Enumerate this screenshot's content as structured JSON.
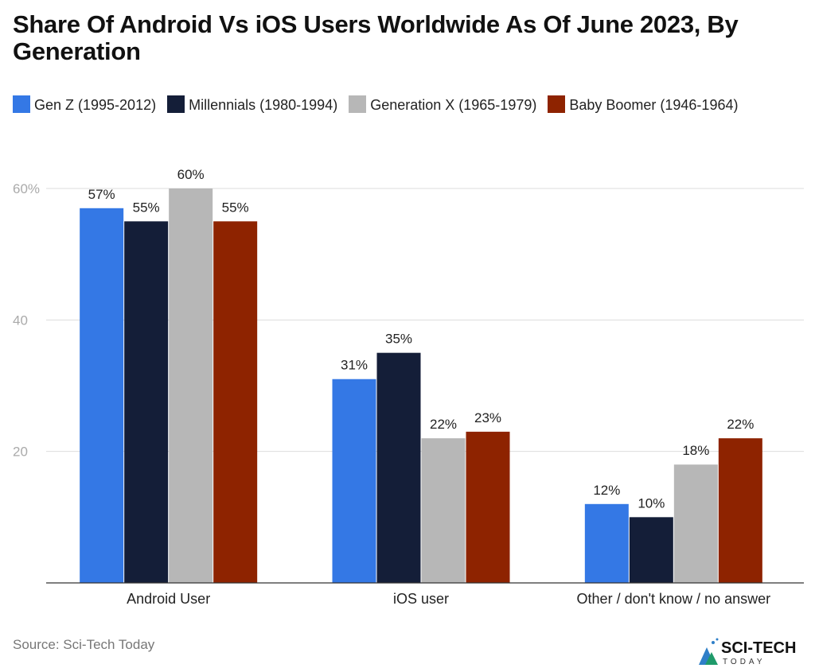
{
  "chart_data": {
    "type": "bar",
    "title": "Share Of Android Vs iOS Users Worldwide As Of June 2023, By Generation",
    "categories": [
      "Android User",
      "iOS user",
      "Other / don't know / no answer"
    ],
    "series": [
      {
        "name": "Gen Z (1995-2012)",
        "color": "#3478e5",
        "values": [
          57,
          31,
          12
        ],
        "labels": [
          "57%",
          "31%",
          "12%"
        ]
      },
      {
        "name": "Millennials (1980-1994)",
        "color": "#141e38",
        "values": [
          55,
          35,
          10
        ],
        "labels": [
          "55%",
          "35%",
          "10%"
        ]
      },
      {
        "name": "Generation X (1965-1979)",
        "color": "#b7b7b7",
        "values": [
          60,
          22,
          18
        ],
        "labels": [
          "60%",
          "22%",
          "18%"
        ]
      },
      {
        "name": "Baby Boomer (1946-1964)",
        "color": "#8e2300",
        "values": [
          55,
          23,
          22
        ],
        "labels": [
          "55%",
          "23%",
          "22%"
        ]
      }
    ],
    "yticks": [
      {
        "value": 20,
        "label": "20"
      },
      {
        "value": 40,
        "label": "40"
      },
      {
        "value": 60,
        "label": "60%"
      }
    ],
    "ylim": [
      0,
      60
    ],
    "grid": true,
    "legend": "top"
  },
  "source": "Source: Sci-Tech Today",
  "logo": {
    "text": "SCI-TECH",
    "subtext": "TODAY"
  }
}
